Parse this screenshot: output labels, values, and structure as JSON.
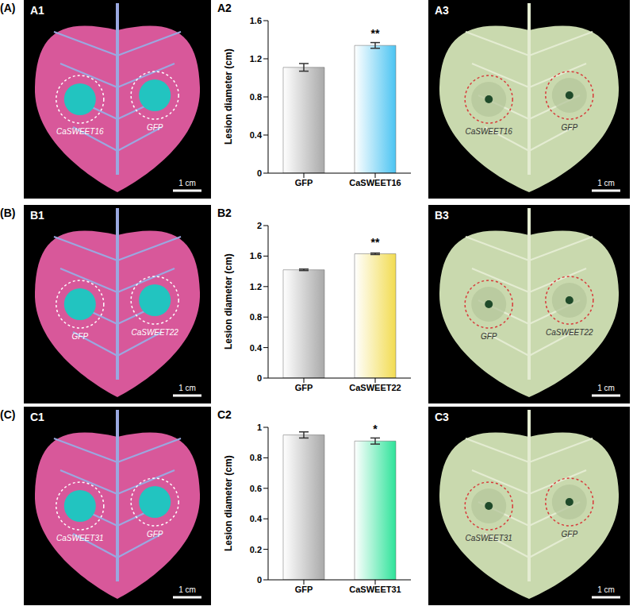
{
  "chart_data": [
    {
      "type": "bar",
      "panel": "A2",
      "y_label": "Lesion diameter (cm)",
      "categories": [
        "GFP",
        "CaSWEET16"
      ],
      "values": [
        1.11,
        1.34
      ],
      "errors": [
        0.04,
        0.03
      ],
      "colors": [
        "#a9a9a9",
        "#4cc4f2"
      ],
      "ylim": [
        0,
        1.6
      ],
      "yticks": [
        0,
        0.4,
        0.8,
        1.2,
        1.6
      ],
      "significance": {
        "category": "CaSWEET16",
        "label": "**"
      }
    },
    {
      "type": "bar",
      "panel": "B2",
      "y_label": "Lesion diameter (cm)",
      "categories": [
        "GFP",
        "CaSWEET22"
      ],
      "values": [
        1.42,
        1.63
      ],
      "errors": [
        0.01,
        0.01
      ],
      "colors": [
        "#a9a9a9",
        "#f2dc52"
      ],
      "ylim": [
        0,
        2
      ],
      "yticks": [
        0,
        0.4,
        0.8,
        1.2,
        1.6,
        2
      ],
      "significance": {
        "category": "CaSWEET22",
        "label": "**"
      }
    },
    {
      "type": "bar",
      "panel": "C2",
      "y_label": "Lesion diameter (cm)",
      "categories": [
        "GFP",
        "CaSWEET31"
      ],
      "values": [
        0.95,
        0.91
      ],
      "errors": [
        0.02,
        0.02
      ],
      "colors": [
        "#a9a9a9",
        "#2fe39a"
      ],
      "ylim": [
        0,
        1
      ],
      "yticks": [
        0,
        0.2,
        0.4,
        0.6,
        0.8,
        1
      ],
      "significance": {
        "category": "CaSWEET31",
        "label": "*"
      }
    }
  ],
  "photos": [
    {
      "row": "(A)",
      "uv": {
        "panel": "A1",
        "spots": [
          "CaSWEET16",
          "GFP"
        ]
      },
      "visible": {
        "panel": "A3",
        "spots": [
          "CaSWEET16",
          "GFP"
        ]
      }
    },
    {
      "row": "(B)",
      "uv": {
        "panel": "B1",
        "spots": [
          "GFP",
          "CaSWEET22"
        ]
      },
      "visible": {
        "panel": "B3",
        "spots": [
          "GFP",
          "CaSWEET22"
        ]
      }
    },
    {
      "row": "(C)",
      "uv": {
        "panel": "C1",
        "spots": [
          "CaSWEET31",
          "GFP"
        ]
      },
      "visible": {
        "panel": "C3",
        "spots": [
          "CaSWEET31",
          "GFP"
        ]
      }
    }
  ],
  "scale_bar": "1 cm"
}
